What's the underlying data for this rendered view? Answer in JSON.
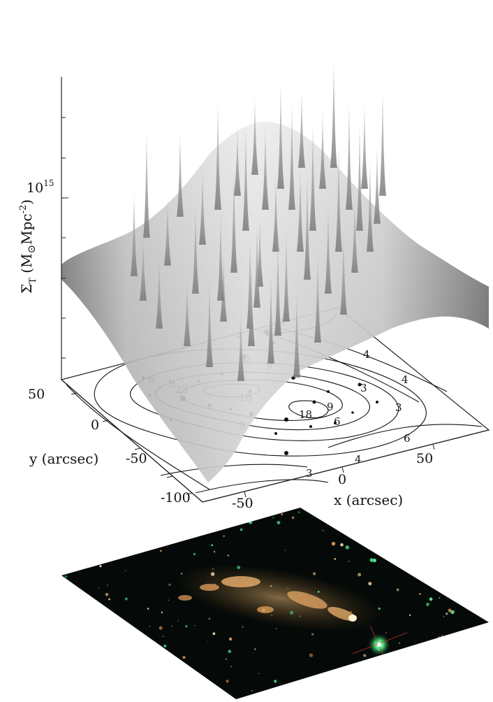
{
  "figure": {
    "z_axis": {
      "label_main": "Σ",
      "label_sub": "T",
      "label_units_open": " (M",
      "label_sun": "⊙",
      "label_units_rest": "Mpc",
      "label_exp": "-2",
      "label_close": ")",
      "tick_base": "10",
      "tick_exp": "15"
    },
    "y_axis": {
      "label": "y (arcsec)",
      "ticks": [
        "50",
        "0",
        "-50",
        "-100"
      ]
    },
    "x_axis": {
      "label": "x (arcsec)",
      "ticks": [
        "-50",
        "0",
        "50"
      ]
    },
    "contour_labels": [
      "3",
      "4",
      "6",
      "9",
      "18",
      "18",
      "23",
      "9",
      "6",
      "4",
      "3",
      "3",
      "4",
      "6",
      "9",
      "9",
      "6",
      "4",
      "3"
    ]
  }
}
